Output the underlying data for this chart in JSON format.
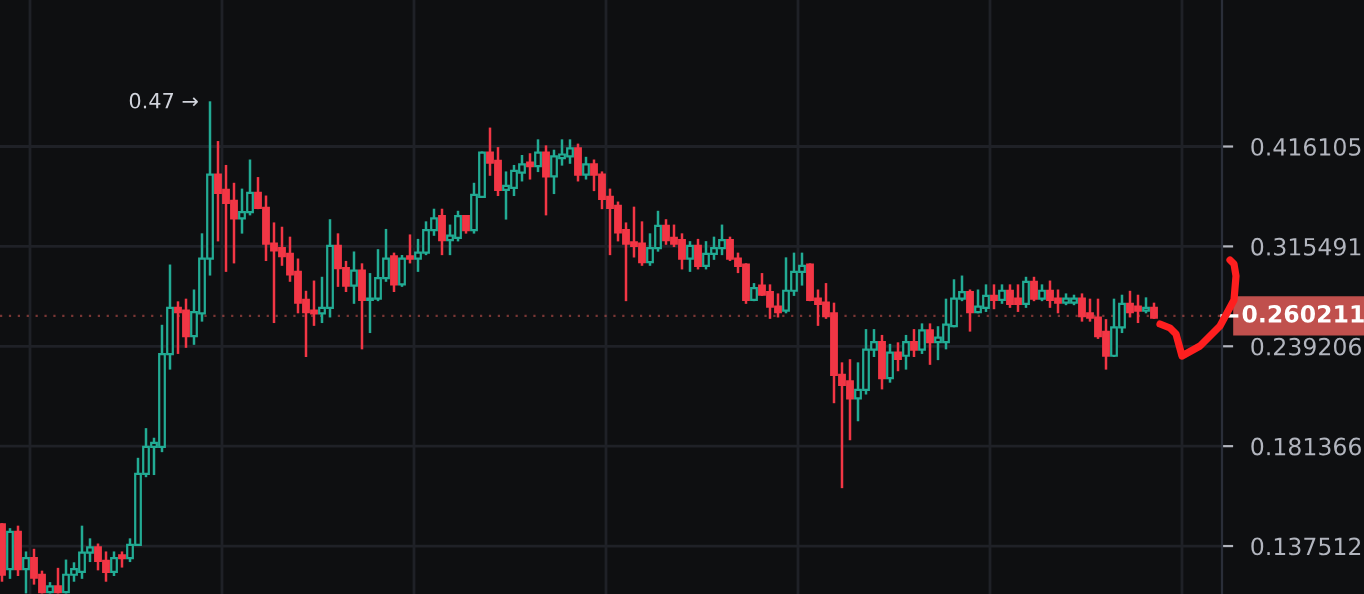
{
  "chart_data": {
    "type": "candlestick",
    "categories": [
      null,
      null,
      null,
      null,
      null,
      null,
      null,
      null,
      null,
      null,
      null,
      null,
      null,
      null,
      null,
      null,
      null,
      null,
      null,
      null,
      null,
      null,
      null,
      null,
      null,
      null,
      null,
      null,
      null,
      null,
      null,
      null,
      null,
      null,
      null,
      null,
      null,
      null,
      null,
      null,
      null,
      null,
      null,
      null,
      null,
      null,
      null,
      null,
      null,
      null,
      null,
      null,
      null,
      null,
      null,
      null,
      null,
      null,
      null,
      null,
      null,
      null,
      null,
      null,
      null,
      null,
      null,
      null,
      null,
      null,
      null,
      null,
      null,
      null,
      null,
      null,
      null,
      null,
      null,
      null,
      null,
      null,
      null,
      null,
      null,
      null,
      null,
      null,
      null,
      null,
      null,
      null,
      null,
      null,
      null,
      null,
      null,
      null,
      null,
      null,
      null,
      null,
      null,
      null,
      null,
      null,
      null,
      null,
      null,
      null,
      null,
      null,
      null,
      null,
      null,
      null,
      null,
      null,
      null,
      null,
      null,
      null,
      null,
      null,
      null,
      null,
      null,
      null,
      null,
      null,
      null,
      null,
      null,
      null,
      null,
      null,
      null,
      null,
      null,
      null,
      null,
      null,
      null,
      null,
      null
    ],
    "ohlc": [
      [
        0.146,
        0.146,
        0.125,
        0.127
      ],
      [
        0.129,
        0.144,
        0.126,
        0.143
      ],
      [
        0.143,
        0.145,
        0.127,
        0.129
      ],
      [
        0.129,
        0.135,
        0.121,
        0.133
      ],
      [
        0.133,
        0.136,
        0.124,
        0.126
      ],
      [
        0.127,
        0.128,
        0.121,
        0.121
      ],
      [
        0.121,
        0.124,
        0.121,
        0.123
      ],
      [
        0.123,
        0.129,
        0.121,
        0.121
      ],
      [
        0.121,
        0.132,
        0.121,
        0.127
      ],
      [
        0.127,
        0.131,
        0.125,
        0.129
      ],
      [
        0.128,
        0.145,
        0.126,
        0.135
      ],
      [
        0.135,
        0.14,
        0.132,
        0.137
      ],
      [
        0.137,
        0.138,
        0.129,
        0.132
      ],
      [
        0.132,
        0.135,
        0.125,
        0.128
      ],
      [
        0.128,
        0.135,
        0.127,
        0.133
      ],
      [
        0.134,
        0.135,
        0.13,
        0.133
      ],
      [
        0.133,
        0.14,
        0.132,
        0.138
      ],
      [
        0.138,
        0.175,
        0.138,
        0.168
      ],
      [
        0.168,
        0.19,
        0.167,
        0.181
      ],
      [
        0.181,
        0.185,
        0.168,
        0.183
      ],
      [
        0.181,
        0.253,
        0.179,
        0.234
      ],
      [
        0.234,
        0.299,
        0.225,
        0.266
      ],
      [
        0.266,
        0.27,
        0.235,
        0.263
      ],
      [
        0.264,
        0.272,
        0.239,
        0.246
      ],
      [
        0.246,
        0.279,
        0.241,
        0.263
      ],
      [
        0.262,
        0.326,
        0.257,
        0.305
      ],
      [
        0.305,
        0.47,
        0.292,
        0.385
      ],
      [
        0.385,
        0.421,
        0.321,
        0.366
      ],
      [
        0.369,
        0.394,
        0.295,
        0.356
      ],
      [
        0.358,
        0.375,
        0.302,
        0.341
      ],
      [
        0.341,
        0.369,
        0.328,
        0.347
      ],
      [
        0.347,
        0.4,
        0.345,
        0.366
      ],
      [
        0.366,
        0.381,
        0.351,
        0.351
      ],
      [
        0.351,
        0.362,
        0.304,
        0.318
      ],
      [
        0.318,
        0.336,
        0.256,
        0.312
      ],
      [
        0.314,
        0.332,
        0.3,
        0.307
      ],
      [
        0.309,
        0.323,
        0.287,
        0.292
      ],
      [
        0.294,
        0.304,
        0.263,
        0.27
      ],
      [
        0.272,
        0.278,
        0.233,
        0.263
      ],
      [
        0.264,
        0.286,
        0.254,
        0.262
      ],
      [
        0.262,
        0.289,
        0.256,
        0.266
      ],
      [
        0.266,
        0.339,
        0.26,
        0.316
      ],
      [
        0.316,
        0.326,
        0.283,
        0.297
      ],
      [
        0.297,
        0.302,
        0.279,
        0.283
      ],
      [
        0.283,
        0.31,
        0.27,
        0.295
      ],
      [
        0.295,
        0.3,
        0.238,
        0.272
      ],
      [
        0.272,
        0.292,
        0.249,
        0.273
      ],
      [
        0.273,
        0.312,
        0.272,
        0.289
      ],
      [
        0.289,
        0.33,
        0.287,
        0.305
      ],
      [
        0.307,
        0.309,
        0.279,
        0.284
      ],
      [
        0.284,
        0.307,
        0.283,
        0.305
      ],
      [
        0.307,
        0.325,
        0.302,
        0.305
      ],
      [
        0.305,
        0.321,
        0.295,
        0.31
      ],
      [
        0.31,
        0.337,
        0.309,
        0.33
      ],
      [
        0.33,
        0.349,
        0.326,
        0.341
      ],
      [
        0.343,
        0.349,
        0.309,
        0.321
      ],
      [
        0.321,
        0.334,
        0.309,
        0.325
      ],
      [
        0.323,
        0.347,
        0.321,
        0.343
      ],
      [
        0.343,
        0.343,
        0.328,
        0.33
      ],
      [
        0.33,
        0.375,
        0.328,
        0.364
      ],
      [
        0.362,
        0.409,
        0.362,
        0.409
      ],
      [
        0.409,
        0.437,
        0.385,
        0.398
      ],
      [
        0.4,
        0.414,
        0.364,
        0.369
      ],
      [
        0.369,
        0.387,
        0.341,
        0.373
      ],
      [
        0.371,
        0.394,
        0.364,
        0.389
      ],
      [
        0.387,
        0.405,
        0.379,
        0.396
      ],
      [
        0.398,
        0.407,
        0.381,
        0.394
      ],
      [
        0.394,
        0.423,
        0.389,
        0.409
      ],
      [
        0.409,
        0.416,
        0.345,
        0.383
      ],
      [
        0.383,
        0.411,
        0.366,
        0.405
      ],
      [
        0.403,
        0.423,
        0.396,
        0.407
      ],
      [
        0.405,
        0.423,
        0.398,
        0.414
      ],
      [
        0.414,
        0.418,
        0.379,
        0.385
      ],
      [
        0.385,
        0.403,
        0.381,
        0.396
      ],
      [
        0.396,
        0.4,
        0.369,
        0.385
      ],
      [
        0.385,
        0.387,
        0.351,
        0.36
      ],
      [
        0.362,
        0.369,
        0.309,
        0.351
      ],
      [
        0.353,
        0.356,
        0.321,
        0.328
      ],
      [
        0.33,
        0.336,
        0.272,
        0.318
      ],
      [
        0.319,
        0.351,
        0.307,
        0.316
      ],
      [
        0.318,
        0.337,
        0.3,
        0.302
      ],
      [
        0.302,
        0.326,
        0.3,
        0.314
      ],
      [
        0.314,
        0.347,
        0.312,
        0.334
      ],
      [
        0.334,
        0.339,
        0.318,
        0.321
      ],
      [
        0.323,
        0.334,
        0.316,
        0.318
      ],
      [
        0.321,
        0.326,
        0.297,
        0.305
      ],
      [
        0.305,
        0.319,
        0.295,
        0.316
      ],
      [
        0.316,
        0.321,
        0.297,
        0.299
      ],
      [
        0.299,
        0.319,
        0.297,
        0.309
      ],
      [
        0.309,
        0.323,
        0.305,
        0.314
      ],
      [
        0.314,
        0.334,
        0.309,
        0.321
      ],
      [
        0.321,
        0.323,
        0.304,
        0.305
      ],
      [
        0.305,
        0.309,
        0.294,
        0.299
      ],
      [
        0.3,
        0.3,
        0.27,
        0.272
      ],
      [
        0.272,
        0.284,
        0.272,
        0.281
      ],
      [
        0.283,
        0.292,
        0.276,
        0.276
      ],
      [
        0.278,
        0.283,
        0.259,
        0.267
      ],
      [
        0.267,
        0.276,
        0.26,
        0.263
      ],
      [
        0.264,
        0.305,
        0.263,
        0.279
      ],
      [
        0.279,
        0.309,
        0.276,
        0.294
      ],
      [
        0.294,
        0.309,
        0.284,
        0.299
      ],
      [
        0.3,
        0.3,
        0.272,
        0.272
      ],
      [
        0.273,
        0.279,
        0.254,
        0.269
      ],
      [
        0.27,
        0.284,
        0.259,
        0.26
      ],
      [
        0.262,
        0.269,
        0.205,
        0.221
      ],
      [
        0.221,
        0.228,
        0.162,
        0.215
      ],
      [
        0.217,
        0.23,
        0.185,
        0.207
      ],
      [
        0.207,
        0.228,
        0.195,
        0.212
      ],
      [
        0.212,
        0.25,
        0.21,
        0.237
      ],
      [
        0.237,
        0.25,
        0.233,
        0.242
      ],
      [
        0.242,
        0.246,
        0.213,
        0.219
      ],
      [
        0.219,
        0.24,
        0.217,
        0.235
      ],
      [
        0.235,
        0.241,
        0.224,
        0.231
      ],
      [
        0.233,
        0.246,
        0.225,
        0.242
      ],
      [
        0.242,
        0.25,
        0.233,
        0.237
      ],
      [
        0.237,
        0.254,
        0.235,
        0.25
      ],
      [
        0.25,
        0.254,
        0.228,
        0.242
      ],
      [
        0.242,
        0.252,
        0.231,
        0.245
      ],
      [
        0.242,
        0.272,
        0.238,
        0.254
      ],
      [
        0.253,
        0.287,
        0.253,
        0.273
      ],
      [
        0.273,
        0.29,
        0.272,
        0.278
      ],
      [
        0.278,
        0.279,
        0.25,
        0.263
      ],
      [
        0.263,
        0.279,
        0.263,
        0.267
      ],
      [
        0.266,
        0.283,
        0.264,
        0.275
      ],
      [
        0.275,
        0.283,
        0.266,
        0.272
      ],
      [
        0.272,
        0.283,
        0.27,
        0.279
      ],
      [
        0.279,
        0.283,
        0.267,
        0.269
      ],
      [
        0.273,
        0.283,
        0.264,
        0.269
      ],
      [
        0.269,
        0.289,
        0.267,
        0.286
      ],
      [
        0.286,
        0.289,
        0.272,
        0.273
      ],
      [
        0.273,
        0.283,
        0.272,
        0.279
      ],
      [
        0.279,
        0.286,
        0.267,
        0.272
      ],
      [
        0.273,
        0.279,
        0.263,
        0.27
      ],
      [
        0.27,
        0.276,
        0.269,
        0.273
      ],
      [
        0.27,
        0.275,
        0.269,
        0.273
      ],
      [
        0.273,
        0.276,
        0.257,
        0.26
      ],
      [
        0.262,
        0.272,
        0.257,
        0.259
      ],
      [
        0.259,
        0.272,
        0.245,
        0.246
      ],
      [
        0.249,
        0.257,
        0.225,
        0.233
      ],
      [
        0.233,
        0.272,
        0.233,
        0.252
      ],
      [
        0.252,
        0.275,
        0.249,
        0.269
      ],
      [
        0.269,
        0.278,
        0.26,
        0.263
      ],
      [
        0.267,
        0.275,
        0.256,
        0.264
      ],
      [
        0.264,
        0.273,
        0.263,
        0.266
      ],
      [
        0.266,
        0.269,
        0.259,
        0.259
      ]
    ],
    "log": true,
    "ylim": [
      0.1204,
      0.6245
    ],
    "yticks": [
      0.137512,
      0.181366,
      0.239206,
      0.315491,
      0.416105
    ],
    "tick_labels": "y",
    "grid": true,
    "annotations": [
      "0.47 →"
    ],
    "ref_lines": [
      {
        "axis": "y",
        "value": 0.260211,
        "label": "0.260211",
        "color": "#c0504d"
      }
    ]
  }
}
